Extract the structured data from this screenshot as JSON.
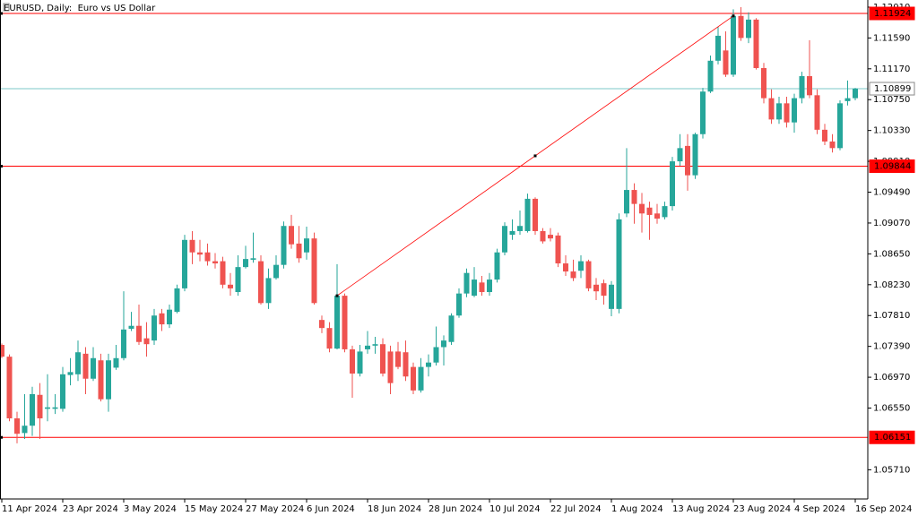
{
  "chart_data": {
    "type": "candlestick",
    "title": "EURUSD, Daily:  Euro vs US Dollar",
    "categories": [
      "11 Apr 2024",
      null,
      null,
      null,
      null,
      null,
      null,
      null,
      "23 Apr 2024",
      null,
      null,
      null,
      null,
      null,
      null,
      null,
      "3 May 2024",
      null,
      null,
      null,
      null,
      null,
      null,
      null,
      "15 May 2024",
      null,
      null,
      null,
      null,
      null,
      null,
      null,
      "27 May 2024",
      null,
      null,
      null,
      null,
      null,
      null,
      null,
      "6 Jun 2024",
      null,
      null,
      null,
      null,
      null,
      null,
      null,
      "18 Jun 2024",
      null,
      null,
      null,
      null,
      null,
      null,
      null,
      "28 Jun 2024",
      null,
      null,
      null,
      null,
      null,
      null,
      null,
      "10 Jul 2024",
      null,
      null,
      null,
      null,
      null,
      null,
      null,
      "22 Jul 2024",
      null,
      null,
      null,
      null,
      null,
      null,
      null,
      "1 Aug 2024",
      null,
      null,
      null,
      null,
      null,
      null,
      null,
      "13 Aug 2024",
      null,
      null,
      null,
      null,
      null,
      null,
      null,
      "23 Aug 2024",
      null,
      null,
      null,
      null,
      null,
      null,
      null,
      "4 Sep 2024",
      null,
      null,
      null,
      null,
      null,
      null,
      null,
      "16 Sep 2024"
    ],
    "open": [
      1.0741,
      1.0725,
      1.0641,
      1.0621,
      1.0631,
      1.0673,
      1.0654,
      1.0654,
      1.0654,
      1.07,
      1.0701,
      1.0729,
      1.0695,
      1.072,
      1.0667,
      1.071,
      1.0723,
      1.0763,
      1.0767,
      1.075,
      1.0747,
      1.0784,
      1.0769,
      1.0786,
      1.0818,
      1.0884,
      1.0867,
      1.0867,
      1.0855,
      1.0855,
      1.0823,
      1.0813,
      1.0847,
      1.0857,
      1.0855,
      1.0798,
      1.0832,
      1.085,
      1.0903,
      1.0879,
      1.0867,
      1.0886,
      1.0775,
      1.0764,
      1.0736,
      1.0808,
      1.0735,
      1.0702,
      1.0735,
      1.074,
      1.0742,
      1.0732,
      1.0732,
      1.0731,
      1.0711,
      1.0679,
      1.0711,
      1.0717,
      1.0738,
      1.0745,
      1.0781,
      1.0811,
      1.0808,
      1.0826,
      1.0813,
      1.083,
      1.0867,
      1.0891,
      1.0896,
      1.0896,
      1.094,
      1.0896,
      1.0891,
      1.089,
      1.0852,
      1.0841,
      1.0842,
      1.0855,
      1.0823,
      1.0825,
      1.079,
      1.079,
      1.092,
      1.0952,
      1.0933,
      1.0928,
      1.092,
      1.0915,
      1.093,
      1.0991,
      1.1012,
      1.0972,
      1.1028,
      1.1086,
      1.1128,
      1.1142,
      1.1109,
      1.1189,
      1.1159,
      1.1184,
      1.1118,
      1.1077,
      1.1048,
      1.107,
      1.1044,
      1.1077,
      1.1107,
      1.1081,
      1.1034,
      1.1018,
      1.1009,
      1.1073,
      1.1077
    ],
    "high": [
      1.0743,
      1.0728,
      1.065,
      1.0674,
      1.0684,
      1.0689,
      1.0701,
      1.0674,
      1.0711,
      1.0723,
      1.0747,
      1.0738,
      1.0738,
      1.0729,
      1.0729,
      1.0741,
      1.0814,
      1.0786,
      1.0796,
      1.0772,
      1.079,
      1.079,
      1.0796,
      1.0823,
      1.0891,
      1.0896,
      1.0884,
      1.0879,
      1.0866,
      1.0861,
      1.0839,
      1.0863,
      1.0876,
      1.0894,
      1.0863,
      1.0845,
      1.0863,
      1.0909,
      1.0918,
      1.0903,
      1.0902,
      1.0894,
      1.0781,
      1.0772,
      1.0851,
      1.0811,
      1.074,
      1.0741,
      1.076,
      1.0752,
      1.075,
      1.074,
      1.0745,
      1.0747,
      1.0717,
      1.0723,
      1.0728,
      1.0766,
      1.0754,
      1.0784,
      1.0818,
      1.0845,
      1.0847,
      1.0835,
      1.0839,
      1.0872,
      1.0908,
      1.0912,
      1.0924,
      1.0947,
      1.0942,
      1.09,
      1.09,
      1.0894,
      1.0863,
      1.0857,
      1.0863,
      1.0857,
      1.0832,
      1.083,
      1.0828,
      1.092,
      1.1009,
      1.0961,
      1.0948,
      1.0936,
      1.0933,
      1.0936,
      1.0997,
      1.1028,
      1.1028,
      1.103,
      1.1091,
      1.1135,
      1.1174,
      1.1168,
      1.1198,
      1.1201,
      1.1194,
      1.1186,
      1.1125,
      1.1089,
      1.1079,
      1.1079,
      1.1083,
      1.1113,
      1.1156,
      1.1089,
      1.1042,
      1.1028,
      1.1074,
      1.1101,
      1.1091
    ],
    "low": [
      1.0723,
      1.0637,
      1.0607,
      1.0613,
      1.0617,
      1.0613,
      1.0637,
      1.0647,
      1.065,
      1.0686,
      1.0692,
      1.0674,
      1.0692,
      1.0664,
      1.065,
      1.0707,
      1.072,
      1.076,
      1.0741,
      1.0725,
      1.0741,
      1.076,
      1.0764,
      1.0784,
      1.0814,
      1.0851,
      1.0855,
      1.0849,
      1.0845,
      1.0818,
      1.0808,
      1.0808,
      1.0845,
      1.0853,
      1.0796,
      1.079,
      1.083,
      1.0845,
      1.0872,
      1.0853,
      1.0857,
      1.0796,
      1.0757,
      1.0731,
      1.0735,
      1.0731,
      1.0669,
      1.0698,
      1.0729,
      1.0729,
      1.0698,
      1.0674,
      1.0708,
      1.0692,
      1.0674,
      1.0676,
      1.0698,
      1.0713,
      1.0713,
      1.0741,
      1.0778,
      1.0806,
      1.0806,
      1.0808,
      1.0808,
      1.0826,
      1.0863,
      1.0884,
      1.0891,
      1.0894,
      1.0891,
      1.0879,
      1.0882,
      1.0847,
      1.0835,
      1.0828,
      1.0832,
      1.0814,
      1.0802,
      1.0796,
      1.078,
      1.0784,
      1.0915,
      1.0906,
      1.0894,
      1.0884,
      1.0906,
      1.0912,
      1.0924,
      1.0985,
      1.0951,
      1.0967,
      1.1022,
      1.1084,
      1.1123,
      1.1106,
      1.1106,
      1.1155,
      1.1152,
      1.1116,
      1.107,
      1.1042,
      1.1042,
      1.1037,
      1.103,
      1.107,
      1.1077,
      1.1028,
      1.1013,
      1.1003,
      1.1006,
      1.1067,
      1.1074
    ],
    "close": [
      1.0725,
      1.0641,
      1.062,
      1.0631,
      1.0674,
      1.0641,
      1.0656,
      1.0656,
      1.0701,
      1.0704,
      1.0731,
      1.0695,
      1.0723,
      1.0667,
      1.072,
      1.0723,
      1.0762,
      1.0767,
      1.0745,
      1.0742,
      1.0781,
      1.0769,
      1.0789,
      1.0818,
      1.0884,
      1.0867,
      1.0864,
      1.0855,
      1.0852,
      1.0823,
      1.0818,
      1.0847,
      1.0858,
      1.0859,
      1.0798,
      1.0832,
      1.085,
      1.0903,
      1.0878,
      1.0859,
      1.0886,
      1.0798,
      1.0764,
      1.0736,
      1.0808,
      1.0735,
      1.0702,
      1.0732,
      1.074,
      1.0742,
      1.0702,
      1.0689,
      1.0711,
      1.0698,
      1.0679,
      1.0711,
      1.0717,
      1.0738,
      1.0747,
      1.0781,
      1.0811,
      1.0839,
      1.083,
      1.0813,
      1.083,
      1.0867,
      1.0903,
      1.0896,
      1.0903,
      1.094,
      1.0896,
      1.0882,
      1.0886,
      1.0852,
      1.0841,
      1.0832,
      1.0855,
      1.0818,
      1.0814,
      1.0808,
      1.0823,
      1.0912,
      1.0952,
      1.0933,
      1.092,
      1.0918,
      1.0913,
      1.093,
      1.0991,
      1.1009,
      1.0972,
      1.1028,
      1.1086,
      1.1128,
      1.1162,
      1.1109,
      1.1189,
      1.1159,
      1.1184,
      1.1118,
      1.1077,
      1.1048,
      1.107,
      1.1044,
      1.1077,
      1.1107,
      1.1081,
      1.1034,
      1.1018,
      1.1009,
      1.107,
      1.1077,
      1.109
    ],
    "up_color": "#26a69a",
    "down_color": "#ef5350",
    "ylim": [
      1.05312,
      1.12107
    ],
    "yticks": [
      {
        "value": 1.1201,
        "label": "1.12010"
      },
      {
        "value": 1.1159,
        "label": "1.11590"
      },
      {
        "value": 1.1117,
        "label": "1.11170"
      },
      {
        "value": 1.1075,
        "label": "1.10750"
      },
      {
        "value": 1.1033,
        "label": "1.10330"
      },
      {
        "value": 1.0991,
        "label": "1.09910"
      },
      {
        "value": 1.0949,
        "label": "1.09490"
      },
      {
        "value": 1.0907,
        "label": "1.09070"
      },
      {
        "value": 1.0865,
        "label": "1.08650"
      },
      {
        "value": 1.0823,
        "label": "1.08230"
      },
      {
        "value": 1.0781,
        "label": "1.07810"
      },
      {
        "value": 1.0739,
        "label": "1.07390"
      },
      {
        "value": 1.0697,
        "label": "1.06970"
      },
      {
        "value": 1.0655,
        "label": "1.06550"
      },
      {
        "value": 1.0571,
        "label": "1.05710"
      }
    ],
    "levels": [
      1.11924,
      1.09844,
      1.06151
    ],
    "level_color": "#ff0000",
    "bid": 1.10899,
    "bid_color": "#7ec8c8",
    "grid": false
  }
}
